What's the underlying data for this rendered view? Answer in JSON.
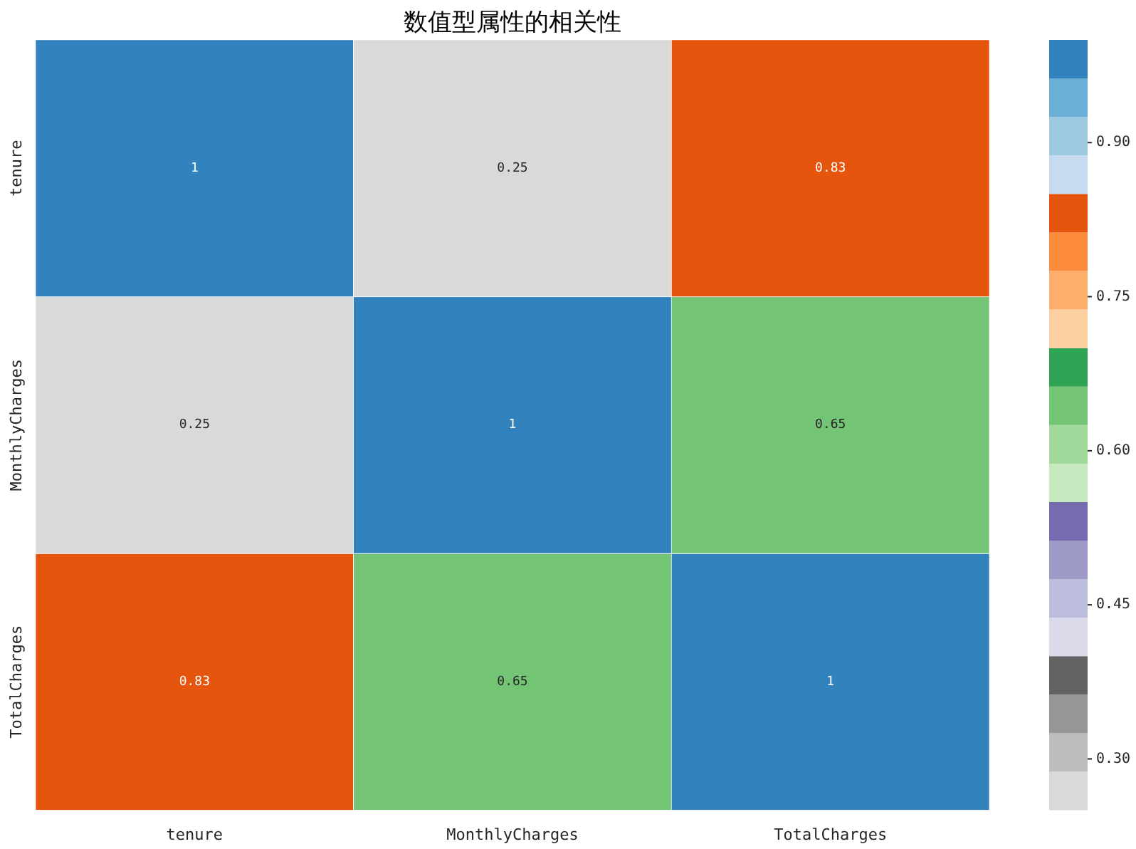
{
  "chart_data": {
    "type": "heatmap",
    "title": "数值型属性的相关性",
    "categories": [
      "tenure",
      "MonthlyCharges",
      "TotalCharges"
    ],
    "y_categories": [
      "tenure",
      "MonthlyCharges",
      "TotalCharges"
    ],
    "cells": [
      [
        1,
        0.25,
        0.83
      ],
      [
        0.25,
        1,
        0.65
      ],
      [
        0.83,
        0.65,
        1
      ]
    ],
    "data_labels": true,
    "clim": [
      0.25,
      1
    ],
    "cticks": [
      {
        "value": 0.3,
        "label": "0.30"
      },
      {
        "value": 0.45,
        "label": "0.45"
      },
      {
        "value": 0.6,
        "label": "0.60"
      },
      {
        "value": 0.75,
        "label": "0.75"
      },
      {
        "value": 0.9,
        "label": "0.90"
      }
    ]
  }
}
